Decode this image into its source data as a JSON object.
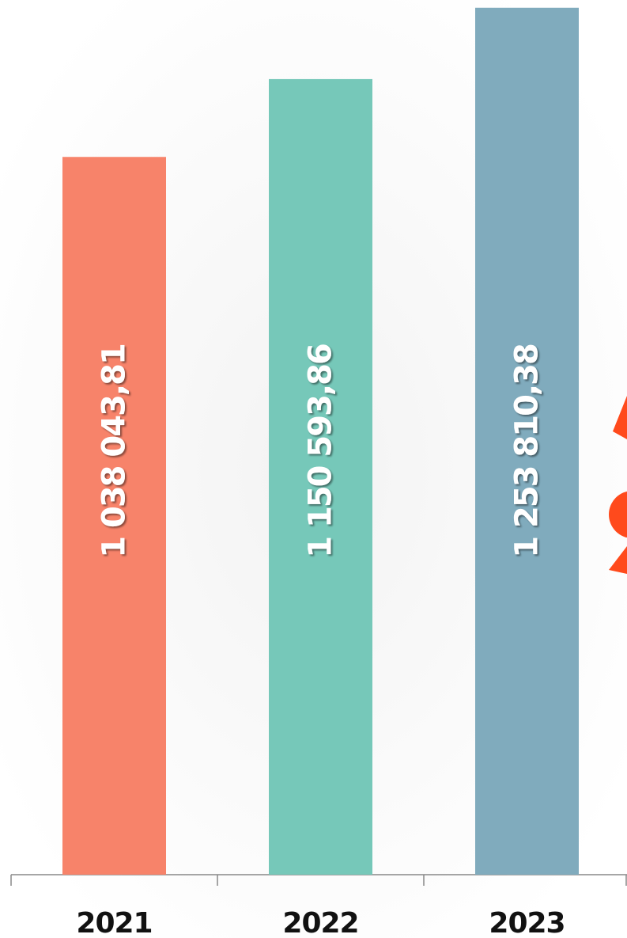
{
  "chart_data": {
    "type": "bar",
    "categories": [
      "2021",
      "2022",
      "2023"
    ],
    "values": [
      1038043.81,
      1150593.86,
      1253810.38
    ],
    "value_labels": [
      "1 038 043,81",
      "1 150 593,86",
      "1 253 810,38"
    ],
    "colors": [
      "#f7836a",
      "#76c8b9",
      "#80abbd"
    ],
    "ylim": [
      0,
      1265000
    ],
    "yticks": []
  }
}
